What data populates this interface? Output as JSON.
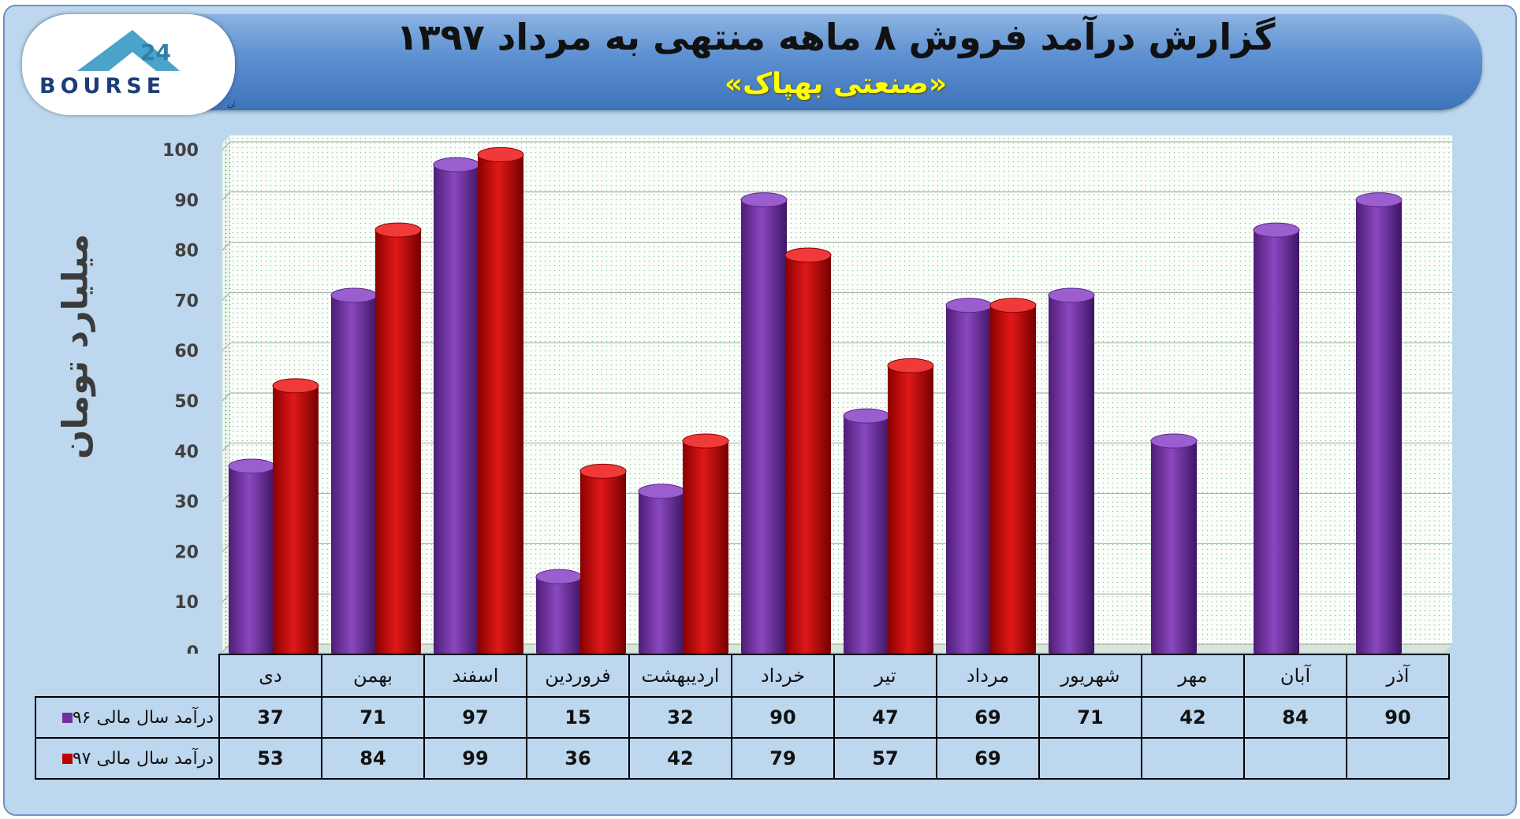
{
  "header": {
    "title": "گزارش درآمد فروش ۸ ماهه منتهی به مرداد ۱۳۹۷",
    "subtitle": "«صنعتی بهپاک»"
  },
  "logo": {
    "text": "BOURSE",
    "number": "24",
    "tagline": "پایگاه اطلاع رسانی و تحلیلی بورس ایران"
  },
  "chart_data": {
    "type": "bar",
    "title": "گزارش درآمد فروش ۸ ماهه منتهی به مرداد ۱۳۹۷",
    "subtitle": "«صنعتی بهپاک»",
    "ylabel": "میلیارد تومان",
    "ylim": [
      0,
      100
    ],
    "yticks": [
      "0",
      "10",
      "20",
      "30",
      "40",
      "50",
      "60",
      "70",
      "80",
      "90",
      "100"
    ],
    "grid": true,
    "categories": [
      "دی",
      "بهمن",
      "اسفند",
      "فروردین",
      "اردیبهشت",
      "خرداد",
      "تیر",
      "مرداد",
      "شهریور",
      "مهر",
      "آبان",
      "آذر"
    ],
    "series": [
      {
        "name": "درآمد سال مالی ۹۶",
        "color": "#7030a0",
        "values": [
          37,
          71,
          97,
          15,
          32,
          90,
          47,
          69,
          71,
          42,
          84,
          90
        ]
      },
      {
        "name": "درآمد سال مالی ۹۷",
        "color": "#c00000",
        "values": [
          53,
          84,
          99,
          36,
          42,
          79,
          57,
          69,
          null,
          null,
          null,
          null
        ]
      }
    ]
  },
  "table": {
    "rows": [
      {
        "label": "درآمد سال مالی ۹۶",
        "color": "#7030a0",
        "cells": [
          "37",
          "71",
          "97",
          "15",
          "32",
          "90",
          "47",
          "69",
          "71",
          "42",
          "84",
          "90"
        ]
      },
      {
        "label": "درآمد سال مالی ۹۷",
        "color": "#c00000",
        "cells": [
          "53",
          "84",
          "99",
          "36",
          "42",
          "79",
          "57",
          "69",
          "",
          "",
          "",
          ""
        ]
      }
    ]
  }
}
